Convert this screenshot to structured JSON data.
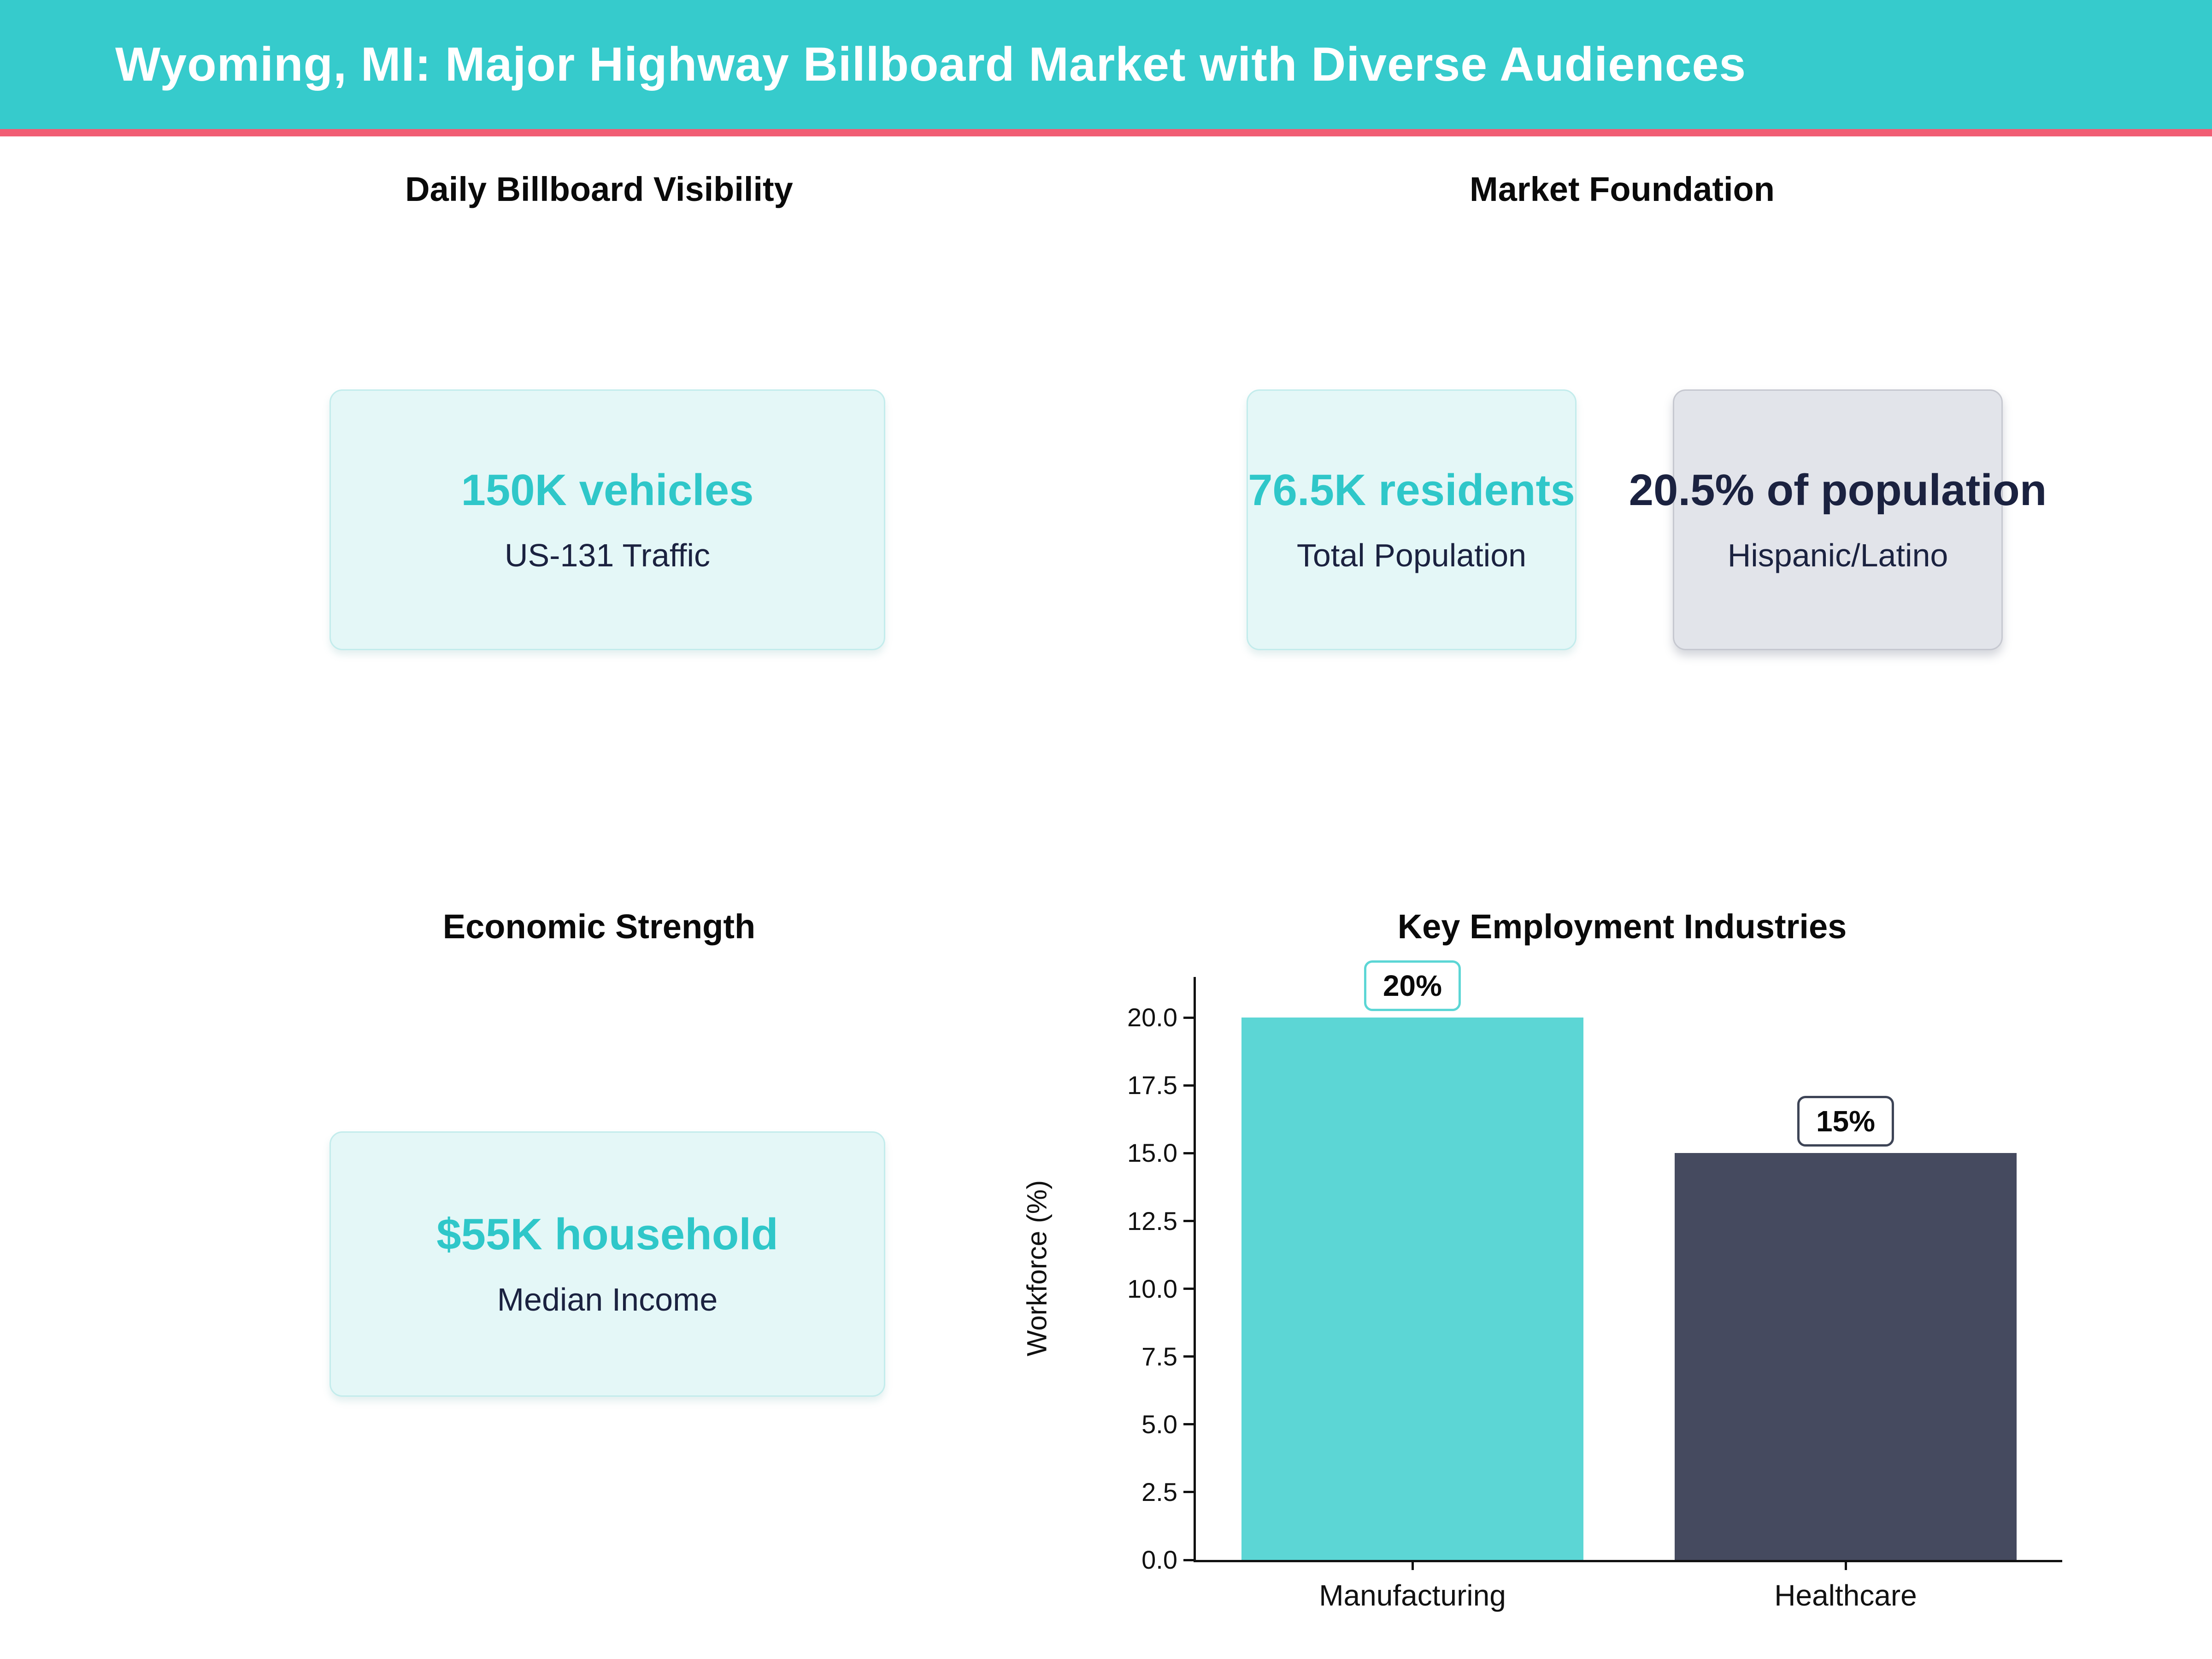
{
  "header": {
    "title": "Wyoming, MI: Major Highway Billboard Market with Diverse Audiences",
    "background_color": "#36CBCC",
    "accent_bar_color": "#F15D74",
    "title_color": "#ffffff"
  },
  "sections": {
    "visibility": {
      "title": "Daily Billboard Visibility",
      "card": {
        "value": "150K vehicles",
        "label": "US-131 Traffic"
      }
    },
    "market": {
      "title": "Market Foundation",
      "cards": [
        {
          "value": "76.5K residents",
          "label": "Total Population",
          "style": "teal"
        },
        {
          "value": "20.5% of population",
          "label": "Hispanic/Latino",
          "style": "gray"
        }
      ]
    },
    "economic": {
      "title": "Economic Strength",
      "card": {
        "value": "$55K household",
        "label": "Median Income"
      }
    },
    "industries": {
      "title": "Key Employment Industries"
    }
  },
  "colors": {
    "accent_teal": "#2FC7C9",
    "navy": "#1B2240",
    "card_teal_bg": "#E4F7F7",
    "card_gray_bg": "#E2E4EA"
  },
  "chart_data": {
    "type": "bar",
    "title": "Key Employment Industries",
    "categories": [
      "Manufacturing",
      "Healthcare"
    ],
    "values": [
      20,
      15
    ],
    "bar_labels": [
      "20%",
      "15%"
    ],
    "bar_colors": [
      "#5CD6D5",
      "#454A5F"
    ],
    "label_box_border_colors": [
      "#5CD6D5",
      "#3D4456"
    ],
    "xlabel": "",
    "ylabel": "Workforce (%)",
    "ylim": [
      0,
      21.5
    ],
    "yticks": [
      "0.0",
      "2.5",
      "5.0",
      "7.5",
      "10.0",
      "12.5",
      "15.0",
      "17.5",
      "20.0"
    ],
    "grid": false,
    "legend": false
  }
}
